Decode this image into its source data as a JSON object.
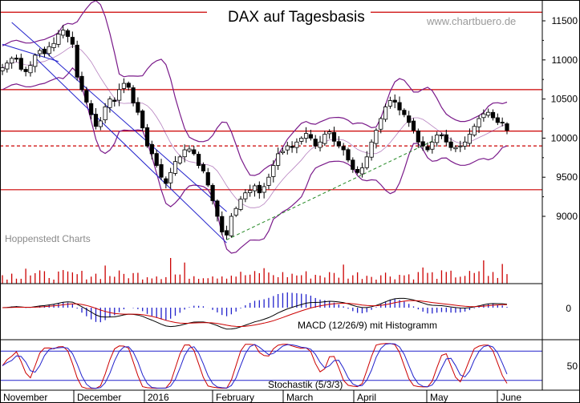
{
  "chart_data": {
    "type": "candlestick",
    "title": "DAX auf Tagesbasis",
    "watermark": "www.chartbuero.de",
    "source_note": "Hoppenstedt Charts",
    "x_labels": [
      "November",
      "December",
      "2016",
      "February",
      "March",
      "April",
      "May",
      "June"
    ],
    "y_ticks": [
      9000,
      9500,
      10000,
      10500,
      11000,
      11500
    ],
    "ylim": [
      8450,
      11700
    ],
    "horizontal_levels": [
      {
        "value": 11610,
        "style": "solid",
        "color": "#cc0000"
      },
      {
        "value": 10620,
        "style": "solid",
        "color": "#cc0000"
      },
      {
        "value": 10090,
        "style": "solid",
        "color": "#cc0000"
      },
      {
        "value": 9900,
        "style": "dashed",
        "color": "#cc0000"
      },
      {
        "value": 9340,
        "style": "solid",
        "color": "#cc0000"
      }
    ],
    "daily_close": [
      10900,
      10960,
      11020,
      11010,
      10880,
      10850,
      10930,
      11060,
      11120,
      11080,
      11170,
      11210,
      11330,
      11380,
      11300,
      11200,
      10780,
      10620,
      10460,
      10300,
      10150,
      10220,
      10400,
      10500,
      10470,
      10620,
      10700,
      10650,
      10450,
      10330,
      10130,
      9900,
      9800,
      9650,
      9500,
      9420,
      9560,
      9700,
      9760,
      9850,
      9860,
      9800,
      9650,
      9580,
      9400,
      9200,
      9000,
      8800,
      8760,
      9000,
      9100,
      9220,
      9300,
      9330,
      9390,
      9300,
      9380,
      9500,
      9650,
      9800,
      9830,
      9900,
      9880,
      9950,
      10000,
      10060,
      10000,
      9900,
      9950,
      10050,
      10080,
      9960,
      9900,
      9850,
      9720,
      9600,
      9560,
      9620,
      9760,
      9950,
      10100,
      10250,
      10400,
      10480,
      10460,
      10360,
      10300,
      10200,
      10100,
      9950,
      9900,
      9850,
      9950,
      10040,
      10030,
      9950,
      9880,
      9880,
      9900,
      9950,
      10050,
      10150,
      10250,
      10310,
      10330,
      10260,
      10200,
      10200,
      10100
    ],
    "bollinger_note": "upper and lower bands in purple around 20-day average",
    "trendlines": [
      {
        "name": "descending channel upper",
        "color": "#2222cc",
        "from": {
          "day": 2,
          "value": 11480
        },
        "to": {
          "day": 48,
          "value": 9060
        }
      },
      {
        "name": "descending channel lower",
        "color": "#2222cc",
        "from": {
          "day": 7,
          "value": 11030
        },
        "to": {
          "day": 48,
          "value": 8660
        }
      },
      {
        "name": "upper channel line",
        "color": "#2222cc",
        "from": {
          "day": 0,
          "value": 11200
        },
        "to": {
          "day": 12,
          "value": 10980
        }
      },
      {
        "name": "rising support",
        "color": "#228822",
        "style": "dashed",
        "from": {
          "day": 48,
          "value": 8700
        },
        "to": {
          "day": 93,
          "value": 9990
        }
      }
    ],
    "panels": [
      {
        "name": "volume",
        "color": "#cc0000"
      },
      {
        "name": "macd",
        "label": "MACD (12/26/9) mit Histogramm",
        "zero_tick": "0",
        "lines": [
          "MACD",
          "Signal"
        ],
        "histogram_color": "#2222cc"
      },
      {
        "name": "stochastic",
        "label": "Stochastik (5/3/3)",
        "tick": "50",
        "levels": [
          80,
          20
        ]
      }
    ],
    "colors": {
      "up_candle": "#ffffff",
      "down_candle": "#000000",
      "bands": "#7a1a8a",
      "level_lines": "#cc0000",
      "channel": "#2222cc",
      "support": "#228822",
      "macd_line": "#000000",
      "signal_line": "#cc0000",
      "stoch_k": "#cc0000",
      "stoch_d": "#2222cc"
    }
  }
}
